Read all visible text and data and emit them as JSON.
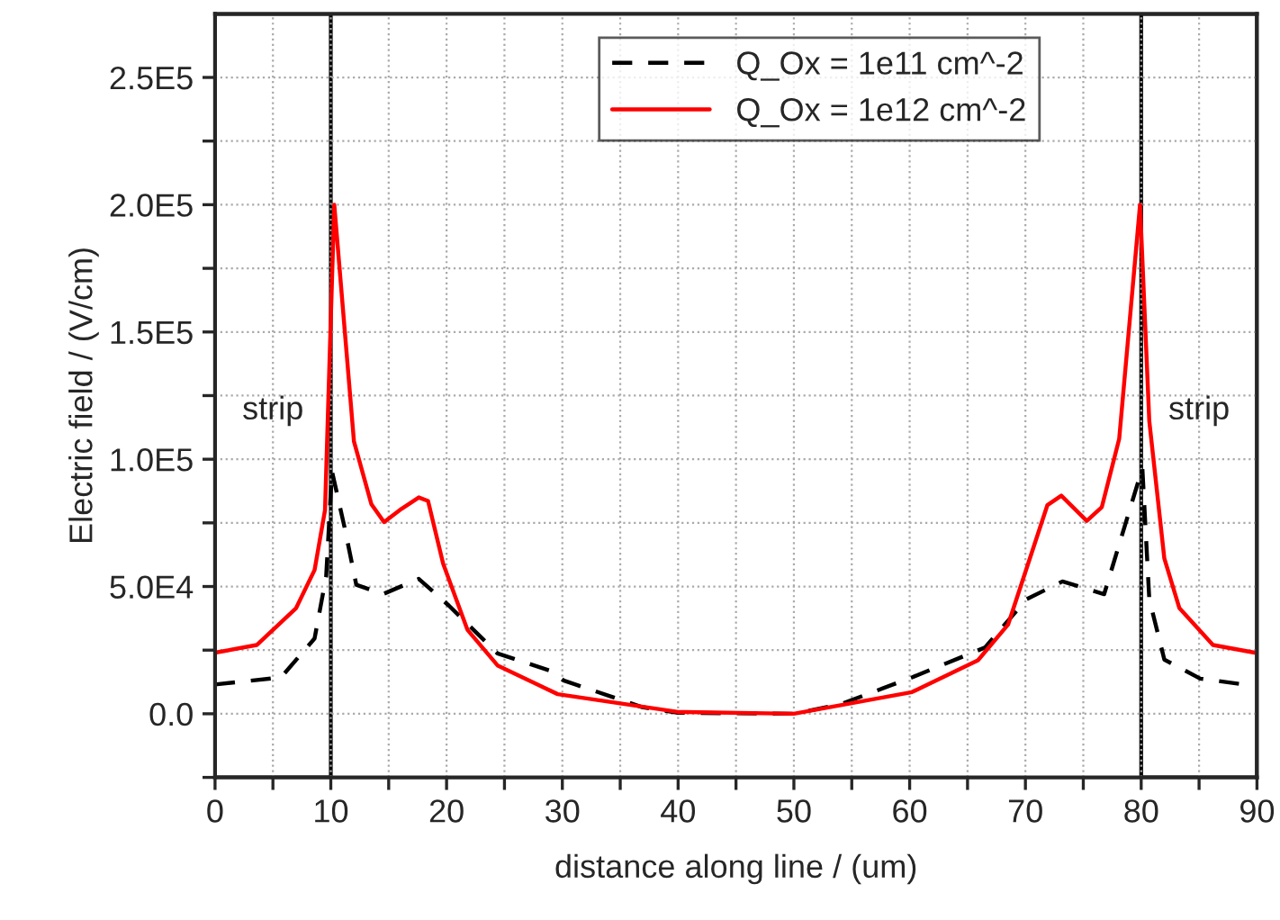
{
  "chart_data": {
    "type": "line",
    "xlabel": "distance along line / (um)",
    "ylabel": "Electric field / (V/cm)",
    "series": [
      {
        "name": "Q_Ox = 1e11 cm^-2",
        "color": "#000000",
        "line_style": "dashed",
        "x": [
          0,
          5.7,
          8.6,
          9.6,
          10.1,
          11.2,
          12.2,
          14.5,
          17.6,
          20.2,
          24.4,
          29.1,
          30.1,
          36.9,
          40,
          50,
          54,
          60.2,
          66.5,
          70.1,
          73.2,
          76.8,
          80.1,
          80.7,
          82,
          85.1,
          88.9
        ],
        "values": [
          11500,
          14300,
          29600,
          54000,
          95300,
          73000,
          50700,
          47000,
          53000,
          42500,
          23700,
          16700,
          13100,
          2600,
          400,
          0,
          3700,
          14300,
          26000,
          45000,
          52000,
          47000,
          96500,
          45000,
          21300,
          13800,
          11500
        ]
      },
      {
        "name": "Q_Ox = 1e12 cm^-2",
        "color": "#ff0000",
        "line_style": "solid",
        "x": [
          0,
          3.6,
          7,
          8.6,
          9.5,
          10.3,
          12,
          13.5,
          14.6,
          16.1,
          17.6,
          18.4,
          19.7,
          21.8,
          24.4,
          29.6,
          40,
          50,
          60.2,
          65.9,
          68.5,
          71.9,
          73.1,
          75.3,
          76.6,
          78.1,
          79.9,
          80.7,
          82,
          83.3,
          86.2,
          89.8
        ],
        "values": [
          24000,
          27000,
          41500,
          56500,
          80000,
          200000,
          107000,
          82400,
          75300,
          80500,
          85000,
          83600,
          59000,
          33000,
          19000,
          7700,
          700,
          0,
          8500,
          21000,
          35000,
          82000,
          85700,
          75800,
          81200,
          108000,
          200000,
          115000,
          61000,
          41500,
          27000,
          24000
        ]
      }
    ],
    "xlim": [
      0,
      90
    ],
    "xticks": [
      0,
      {
        "value": 5,
        "label": null
      },
      10,
      {
        "value": 15,
        "label": null
      },
      20,
      {
        "value": 25,
        "label": null
      },
      30,
      {
        "value": 35,
        "label": null
      },
      40,
      {
        "value": 45,
        "label": null
      },
      50,
      {
        "value": 55,
        "label": null
      },
      60,
      {
        "value": 65,
        "label": null
      },
      70,
      {
        "value": 75,
        "label": null
      },
      80,
      {
        "value": 85,
        "label": null
      },
      90
    ],
    "ylim": [
      -25000,
      275000
    ],
    "yticks": [
      {
        "value": -25000,
        "label": null
      },
      {
        "value": 0,
        "label": "0.0"
      },
      {
        "value": 25000,
        "label": null
      },
      {
        "value": 50000,
        "label": "5.0E4"
      },
      {
        "value": 75000,
        "label": null
      },
      {
        "value": 100000,
        "label": "1.0E5"
      },
      {
        "value": 125000,
        "label": null
      },
      {
        "value": 150000,
        "label": "1.5E5"
      },
      {
        "value": 175000,
        "label": null
      },
      {
        "value": 200000,
        "label": "2.0E5"
      },
      {
        "value": 225000,
        "label": null
      },
      {
        "value": 250000,
        "label": "2.5E5"
      }
    ],
    "bands": [
      {
        "axis": "x",
        "from": 0,
        "to": 10,
        "label": "strip",
        "color": "#ffffff"
      },
      {
        "axis": "x",
        "from": 80,
        "to": 90,
        "label": "strip",
        "color": "#ffffff"
      }
    ],
    "grid": true,
    "legend": "top"
  }
}
